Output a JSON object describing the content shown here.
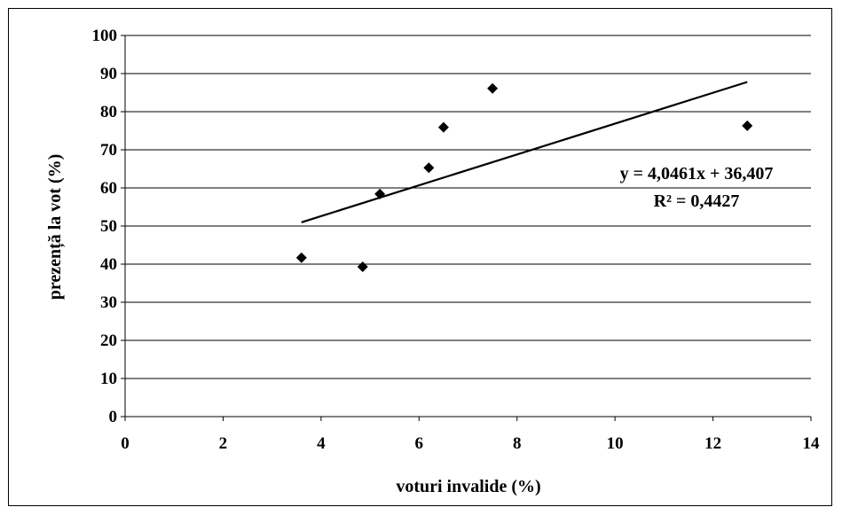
{
  "chart_data": {
    "type": "scatter",
    "title": "",
    "xlabel": "voturi invalide (%)",
    "ylabel": "prezență la vot (%)",
    "xlim": [
      0,
      14
    ],
    "ylim": [
      0,
      100
    ],
    "x_ticks": [
      "0",
      "2",
      "4",
      "6",
      "8",
      "10",
      "12",
      "14"
    ],
    "y_ticks": [
      "0",
      "10",
      "20",
      "30",
      "40",
      "50",
      "60",
      "70",
      "80",
      "90",
      "100"
    ],
    "grid": "horizontal",
    "series": [
      {
        "marker": "diamond",
        "color": "#000000",
        "points": [
          {
            "x": 3.6,
            "y": 41.7
          },
          {
            "x": 4.85,
            "y": 39.3
          },
          {
            "x": 5.2,
            "y": 58.4
          },
          {
            "x": 6.2,
            "y": 65.3
          },
          {
            "x": 6.5,
            "y": 75.9
          },
          {
            "x": 7.5,
            "y": 86.1
          },
          {
            "x": 12.7,
            "y": 76.3
          }
        ]
      }
    ],
    "trendline": {
      "type": "linear",
      "slope": 4.0461,
      "intercept": 36.407,
      "x_range": [
        3.6,
        12.7
      ],
      "equation": "y = 4,0461x + 36,407",
      "r_squared": "R² = 0,4427"
    }
  }
}
